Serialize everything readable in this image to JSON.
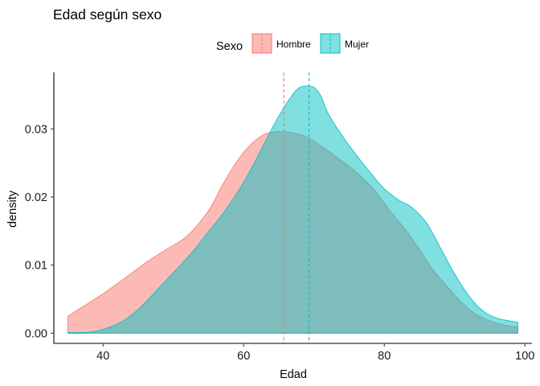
{
  "chart_data": {
    "type": "area",
    "title": "Edad según sexo",
    "xlabel": "Edad",
    "ylabel": "density",
    "xlim": [
      33,
      101
    ],
    "ylim": [
      -0.0015,
      0.0383
    ],
    "x_ticks": [
      40,
      60,
      80,
      100
    ],
    "y_ticks": [
      0.0,
      0.01,
      0.02,
      0.03
    ],
    "y_tick_labels": [
      "0.00",
      "0.01",
      "0.02",
      "0.03"
    ],
    "grid": false,
    "legend_title": "Sexo",
    "legend_position": "top",
    "series": [
      {
        "name": "Hombre",
        "color": "#F8766D",
        "mean": 65.7,
        "x": [
          35,
          37,
          40,
          43,
          46,
          49,
          52,
          55,
          57,
          59,
          61,
          63,
          65,
          67,
          69,
          71,
          73,
          75,
          77,
          79,
          81,
          83,
          85,
          87,
          89,
          91,
          93,
          95,
          97,
          99
        ],
        "y": [
          0.0025,
          0.0038,
          0.0058,
          0.008,
          0.0103,
          0.0123,
          0.0143,
          0.018,
          0.0218,
          0.0252,
          0.0277,
          0.0292,
          0.0296,
          0.0294,
          0.0288,
          0.0275,
          0.026,
          0.0245,
          0.0227,
          0.0205,
          0.0177,
          0.0152,
          0.0123,
          0.0092,
          0.0068,
          0.0045,
          0.0028,
          0.0018,
          0.0012,
          0.0009
        ]
      },
      {
        "name": "Mujer",
        "color": "#00BFC4",
        "mean": 69.3,
        "x": [
          35,
          37,
          39,
          41,
          43,
          45,
          47,
          49,
          51,
          53,
          55,
          57,
          59,
          61,
          63,
          65,
          67,
          68,
          69,
          70,
          71,
          72,
          74,
          76,
          78,
          80,
          82,
          84,
          86,
          88,
          90,
          92,
          94,
          96,
          99
        ],
        "y": [
          0.0001,
          0.0001,
          0.0003,
          0.0009,
          0.0019,
          0.0035,
          0.0056,
          0.0078,
          0.01,
          0.0123,
          0.0149,
          0.0175,
          0.0205,
          0.024,
          0.028,
          0.0319,
          0.0351,
          0.0361,
          0.0363,
          0.0361,
          0.0348,
          0.0323,
          0.029,
          0.0262,
          0.0236,
          0.0212,
          0.0196,
          0.0184,
          0.0162,
          0.0125,
          0.0087,
          0.0055,
          0.0033,
          0.0022,
          0.0016
        ]
      }
    ]
  }
}
